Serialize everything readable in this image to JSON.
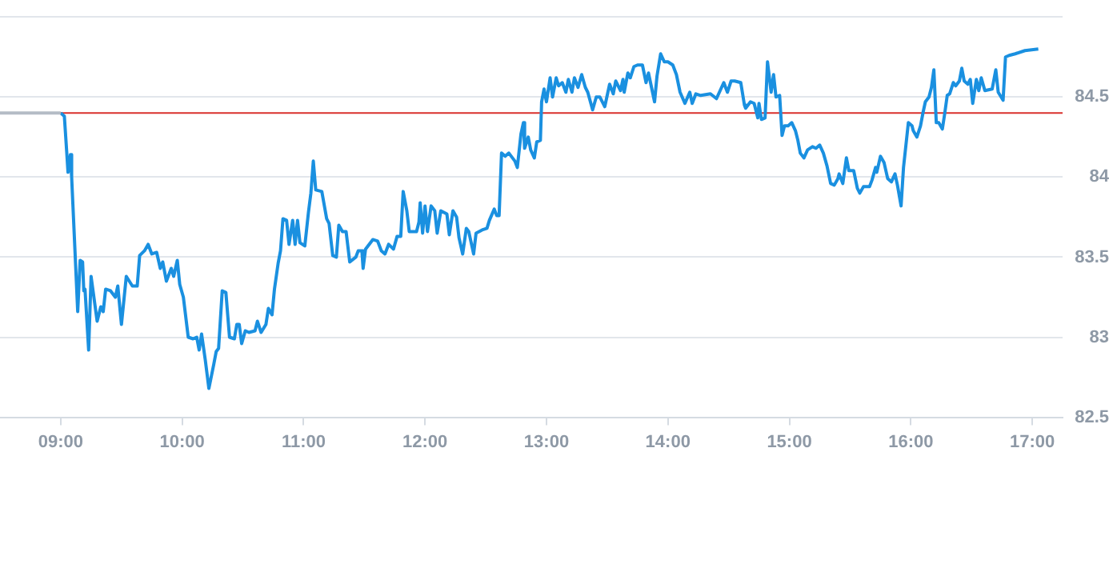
{
  "chart_data": {
    "type": "line",
    "marker": "none",
    "grid": "y",
    "xlim": [
      8.5,
      17.25
    ],
    "ylim": [
      82.5,
      85
    ],
    "xticks": [
      {
        "value": 9,
        "label": "09:00"
      },
      {
        "value": 10,
        "label": "10:00"
      },
      {
        "value": 11,
        "label": "11:00"
      },
      {
        "value": 12,
        "label": "12:00"
      },
      {
        "value": 13,
        "label": "13:00"
      },
      {
        "value": 14,
        "label": "14:00"
      },
      {
        "value": 15,
        "label": "15:00"
      },
      {
        "value": 16,
        "label": "16:00"
      },
      {
        "value": 17,
        "label": "17:00"
      }
    ],
    "yticks": [
      82.5,
      83,
      83.5,
      84,
      84.5,
      {
        "value": 85,
        "label": null
      }
    ],
    "ref_lines": [
      {
        "axis": "y",
        "value": 84.4,
        "color": "#d9302c"
      }
    ],
    "series": [
      {
        "color": "#b4bcc6",
        "x": [
          8.5,
          9.0
        ],
        "values": [
          84.4,
          84.4
        ]
      },
      {
        "color": "#1a90e0",
        "x": [
          9.0,
          9.03,
          9.05,
          9.06,
          9.08,
          9.09,
          9.14,
          9.16,
          9.18,
          9.19,
          9.2,
          9.23,
          9.25,
          9.3,
          9.33,
          9.35,
          9.37,
          9.41,
          9.45,
          9.47,
          9.5,
          9.54,
          9.59,
          9.63,
          9.65,
          9.69,
          9.72,
          9.75,
          9.79,
          9.82,
          9.84,
          9.87,
          9.91,
          9.93,
          9.96,
          9.98,
          10.01,
          10.05,
          10.09,
          10.12,
          10.14,
          10.16,
          10.19,
          10.22,
          10.26,
          10.28,
          10.3,
          10.33,
          10.36,
          10.39,
          10.43,
          10.45,
          10.47,
          10.49,
          10.52,
          10.55,
          10.6,
          10.62,
          10.65,
          10.69,
          10.71,
          10.74,
          10.76,
          10.79,
          10.81,
          10.83,
          10.86,
          10.88,
          10.91,
          10.93,
          10.95,
          10.97,
          11.01,
          11.04,
          11.06,
          11.08,
          11.1,
          11.15,
          11.19,
          11.21,
          11.24,
          11.27,
          11.29,
          11.32,
          11.35,
          11.38,
          11.43,
          11.45,
          11.48,
          11.49,
          11.51,
          11.57,
          11.61,
          11.64,
          11.67,
          11.7,
          11.74,
          11.77,
          11.8,
          11.82,
          11.85,
          11.87,
          11.93,
          11.95,
          11.96,
          11.98,
          12.0,
          12.02,
          12.05,
          12.08,
          12.1,
          12.13,
          12.18,
          12.2,
          12.23,
          12.26,
          12.28,
          12.31,
          12.34,
          12.36,
          12.4,
          12.42,
          12.47,
          12.51,
          12.53,
          12.57,
          12.59,
          12.61,
          12.63,
          12.66,
          12.69,
          12.74,
          12.76,
          12.79,
          12.81,
          12.82,
          12.85,
          12.87,
          12.9,
          12.92,
          12.95,
          12.96,
          12.98,
          13.0,
          13.03,
          13.05,
          13.08,
          13.1,
          13.13,
          13.16,
          13.18,
          13.21,
          13.23,
          13.26,
          13.29,
          13.32,
          13.34,
          13.38,
          13.41,
          13.44,
          13.48,
          13.52,
          13.55,
          13.57,
          13.61,
          13.63,
          13.64,
          13.67,
          13.69,
          13.72,
          13.75,
          13.79,
          13.82,
          13.84,
          13.89,
          13.91,
          13.94,
          13.97,
          14.0,
          14.04,
          14.07,
          14.1,
          14.14,
          14.18,
          14.2,
          14.23,
          14.27,
          14.35,
          14.4,
          14.43,
          14.46,
          14.49,
          14.52,
          14.55,
          14.6,
          14.63,
          14.64,
          14.68,
          14.71,
          14.74,
          14.75,
          14.77,
          14.8,
          14.82,
          14.85,
          14.87,
          14.89,
          14.92,
          14.94,
          14.96,
          14.99,
          15.02,
          15.05,
          15.07,
          15.09,
          15.12,
          15.15,
          15.19,
          15.22,
          15.25,
          15.28,
          15.31,
          15.34,
          15.37,
          15.4,
          15.41,
          15.44,
          15.47,
          15.49,
          15.53,
          15.56,
          15.58,
          15.61,
          15.66,
          15.68,
          15.71,
          15.72,
          15.75,
          15.78,
          15.81,
          15.84,
          15.87,
          15.89,
          15.92,
          15.94,
          15.98,
          16.01,
          16.02,
          16.05,
          16.08,
          16.1,
          16.12,
          16.15,
          16.17,
          16.19,
          16.21,
          16.23,
          16.26,
          16.28,
          16.3,
          16.32,
          16.35,
          16.37,
          16.4,
          16.42,
          16.44,
          16.47,
          16.49,
          16.51,
          16.54,
          16.56,
          16.58,
          16.61,
          16.67,
          16.7,
          16.72,
          16.76,
          16.78,
          16.81,
          16.86,
          16.94,
          17.05
        ],
        "values": [
          84.4,
          84.38,
          84.15,
          84.03,
          84.14,
          84.0,
          83.16,
          83.48,
          83.47,
          83.29,
          83.3,
          82.92,
          83.38,
          83.1,
          83.19,
          83.16,
          83.3,
          83.29,
          83.25,
          83.32,
          83.08,
          83.38,
          83.32,
          83.32,
          83.51,
          83.54,
          83.58,
          83.52,
          83.53,
          83.43,
          83.47,
          83.35,
          83.43,
          83.38,
          83.48,
          83.33,
          83.25,
          83.0,
          82.99,
          83.0,
          82.92,
          83.02,
          82.86,
          82.68,
          82.83,
          82.91,
          82.93,
          83.29,
          83.28,
          83.0,
          82.99,
          83.08,
          83.08,
          82.96,
          83.04,
          83.03,
          83.04,
          83.1,
          83.03,
          83.08,
          83.18,
          83.14,
          83.3,
          83.46,
          83.54,
          83.74,
          83.73,
          83.58,
          83.73,
          83.58,
          83.73,
          83.59,
          83.57,
          83.78,
          83.9,
          84.1,
          83.92,
          83.91,
          83.74,
          83.71,
          83.51,
          83.5,
          83.7,
          83.66,
          83.66,
          83.47,
          83.5,
          83.54,
          83.54,
          83.43,
          83.55,
          83.61,
          83.6,
          83.54,
          83.52,
          83.58,
          83.55,
          83.63,
          83.63,
          83.91,
          83.79,
          83.66,
          83.66,
          83.72,
          83.84,
          83.65,
          83.82,
          83.66,
          83.82,
          83.79,
          83.65,
          83.79,
          83.77,
          83.64,
          83.79,
          83.75,
          83.62,
          83.52,
          83.68,
          83.66,
          83.52,
          83.65,
          83.67,
          83.68,
          83.73,
          83.8,
          83.76,
          83.76,
          84.15,
          84.13,
          84.15,
          84.1,
          84.06,
          84.27,
          84.34,
          84.18,
          84.25,
          84.17,
          84.12,
          84.22,
          84.23,
          84.47,
          84.55,
          84.47,
          84.62,
          84.5,
          84.62,
          84.57,
          84.59,
          84.53,
          84.61,
          84.53,
          84.62,
          84.56,
          84.64,
          84.56,
          84.53,
          84.42,
          84.5,
          84.5,
          84.44,
          84.58,
          84.52,
          84.6,
          84.54,
          84.61,
          84.53,
          84.65,
          84.62,
          84.69,
          84.7,
          84.7,
          84.59,
          84.65,
          84.47,
          84.63,
          84.77,
          84.72,
          84.72,
          84.7,
          84.64,
          84.53,
          84.46,
          84.53,
          84.46,
          84.52,
          84.51,
          84.52,
          84.49,
          84.54,
          84.59,
          84.53,
          84.6,
          84.6,
          84.59,
          84.45,
          84.43,
          84.47,
          84.46,
          84.37,
          84.46,
          84.36,
          84.37,
          84.72,
          84.53,
          84.64,
          84.5,
          84.51,
          84.26,
          84.32,
          84.32,
          84.34,
          84.29,
          84.23,
          84.15,
          84.12,
          84.17,
          84.19,
          84.18,
          84.2,
          84.15,
          84.07,
          83.96,
          83.95,
          83.99,
          84.02,
          83.96,
          84.12,
          84.04,
          84.04,
          83.93,
          83.9,
          83.94,
          83.94,
          83.98,
          84.06,
          84.03,
          84.13,
          84.09,
          83.99,
          83.97,
          84.02,
          83.95,
          83.82,
          84.06,
          84.34,
          84.32,
          84.29,
          84.25,
          84.32,
          84.4,
          84.47,
          84.5,
          84.56,
          84.67,
          84.34,
          84.34,
          84.3,
          84.4,
          84.51,
          84.52,
          84.59,
          84.57,
          84.6,
          84.68,
          84.6,
          84.58,
          84.61,
          84.46,
          84.61,
          84.54,
          84.62,
          84.54,
          84.55,
          84.67,
          84.53,
          84.48,
          84.75,
          84.76,
          84.77,
          84.79,
          84.8
        ]
      }
    ]
  }
}
